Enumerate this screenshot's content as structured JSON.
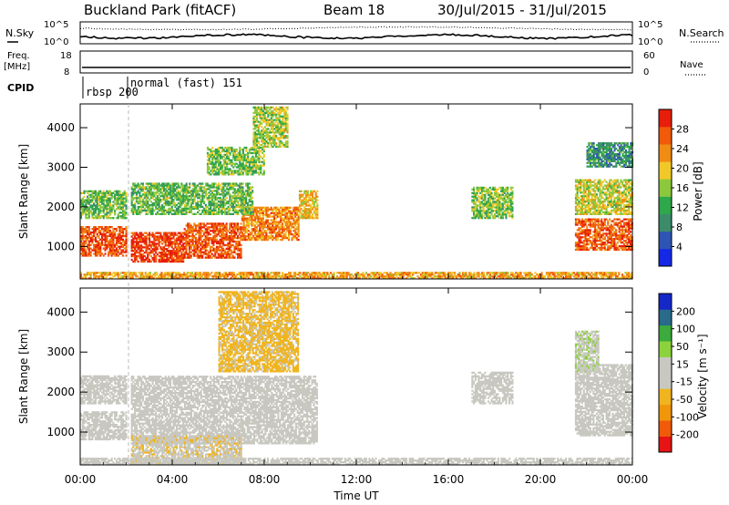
{
  "header": {
    "site": "Buckland Park (fitACF)",
    "beam": "Beam 18",
    "date_range": "30/Jul/2015 - 31/Jul/2015"
  },
  "top_panels": {
    "nsky_label": "N.Sky",
    "nsearch_label": "N.Search",
    "noise_tick_high": "10^5",
    "noise_tick_low": "10^0",
    "freq_label": "Freq.",
    "freq_unit": "[MHz]",
    "freq_ticks": [
      "18",
      "8"
    ],
    "nave_label": "Nave",
    "nave_ticks": [
      "60",
      "0"
    ],
    "cpid_label": "CPID",
    "cpid_entries": [
      {
        "text": "rbsp 200"
      },
      {
        "text": "normal (fast) 151"
      }
    ]
  },
  "colors": {
    "power_scale": [
      "#1428e6",
      "#2f55b4",
      "#3c8c6a",
      "#2ea84a",
      "#8cc83c",
      "#f0c828",
      "#f08c14",
      "#f05a0a",
      "#e61e0a"
    ],
    "velocity_scale": [
      "#e61414",
      "#f05a0a",
      "#f0960a",
      "#f0b41e",
      "#c8c8c0",
      "#c8c8c0",
      "#8cd23c",
      "#3caa3c",
      "#2a6a8a",
      "#1428c8"
    ]
  },
  "chart_data": [
    {
      "type": "heatmap",
      "panel": "power",
      "ylabel": "Slant Range [km]",
      "ylim": [
        180,
        4600
      ],
      "yticks": [
        "1000",
        "2000",
        "3000",
        "4000"
      ],
      "xlim_hours": [
        0,
        24
      ],
      "colorbar_label": "Power [dB]",
      "colorbar_ticks": [
        "4",
        "8",
        "12",
        "16",
        "20",
        "24",
        "28"
      ],
      "colorbar_range": [
        0,
        32
      ],
      "regions": [
        {
          "t": [
            0,
            2.0
          ],
          "r": [
            750,
            1500
          ],
          "v": 27
        },
        {
          "t": [
            0,
            2.0
          ],
          "r": [
            1700,
            2400
          ],
          "v": 14
        },
        {
          "t": [
            2.2,
            4.5
          ],
          "r": [
            600,
            1350
          ],
          "v": 29
        },
        {
          "t": [
            4.5,
            7.0
          ],
          "r": [
            700,
            1600
          ],
          "v": 27
        },
        {
          "t": [
            7.0,
            9.5
          ],
          "r": [
            1150,
            2000
          ],
          "v": 24
        },
        {
          "t": [
            9.5,
            10.3
          ],
          "r": [
            1700,
            2400
          ],
          "v": 20
        },
        {
          "t": [
            2.2,
            7.5
          ],
          "r": [
            1800,
            2600
          ],
          "v": 14
        },
        {
          "t": [
            5.5,
            8.0
          ],
          "r": [
            2800,
            3500
          ],
          "v": 15
        },
        {
          "t": [
            7.5,
            9.0
          ],
          "r": [
            3500,
            4500
          ],
          "v": 17
        },
        {
          "t": [
            17.0,
            18.8
          ],
          "r": [
            1700,
            2500
          ],
          "v": 15
        },
        {
          "t": [
            21.5,
            24.0
          ],
          "r": [
            900,
            1700
          ],
          "v": 27
        },
        {
          "t": [
            21.5,
            24.0
          ],
          "r": [
            1800,
            2700
          ],
          "v": 18
        },
        {
          "t": [
            22.0,
            24.0
          ],
          "r": [
            3000,
            3600
          ],
          "v": 10
        },
        {
          "t": [
            0,
            24.0
          ],
          "r": [
            180,
            350
          ],
          "v": 22
        }
      ]
    },
    {
      "type": "heatmap",
      "panel": "velocity",
      "ylabel": "Slant Range [km]",
      "ylim": [
        180,
        4600
      ],
      "yticks": [
        "1000",
        "2000",
        "3000",
        "4000"
      ],
      "xlim_hours": [
        0,
        24
      ],
      "xticks": [
        "00:00",
        "04:00",
        "08:00",
        "12:00",
        "16:00",
        "20:00",
        "00:00"
      ],
      "xlabel": "Time UT",
      "colorbar_label": "Velocity [m s⁻¹]",
      "colorbar_ticks": [
        "-200",
        "-100",
        "-50",
        "-15",
        "15",
        "50",
        "100",
        "200"
      ],
      "colorbar_range": [
        -250,
        250
      ],
      "regions": [
        {
          "t": [
            0,
            2.0
          ],
          "r": [
            800,
            1500
          ],
          "v": 0
        },
        {
          "t": [
            0,
            2.0
          ],
          "r": [
            1700,
            2400
          ],
          "v": 5
        },
        {
          "t": [
            2.2,
            10.3
          ],
          "r": [
            700,
            2400
          ],
          "v": 0
        },
        {
          "t": [
            2.2,
            7.0
          ],
          "r": [
            200,
            900
          ],
          "v": -40
        },
        {
          "t": [
            6.0,
            9.5
          ],
          "r": [
            2500,
            4500
          ],
          "v": -60
        },
        {
          "t": [
            17.0,
            18.8
          ],
          "r": [
            1700,
            2500
          ],
          "v": 0
        },
        {
          "t": [
            21.5,
            24.0
          ],
          "r": [
            900,
            2700
          ],
          "v": 0
        },
        {
          "t": [
            21.5,
            22.5
          ],
          "r": [
            2500,
            3500
          ],
          "v": 40
        },
        {
          "t": [
            0,
            24.0
          ],
          "r": [
            180,
            350
          ],
          "v": -30
        }
      ]
    }
  ]
}
